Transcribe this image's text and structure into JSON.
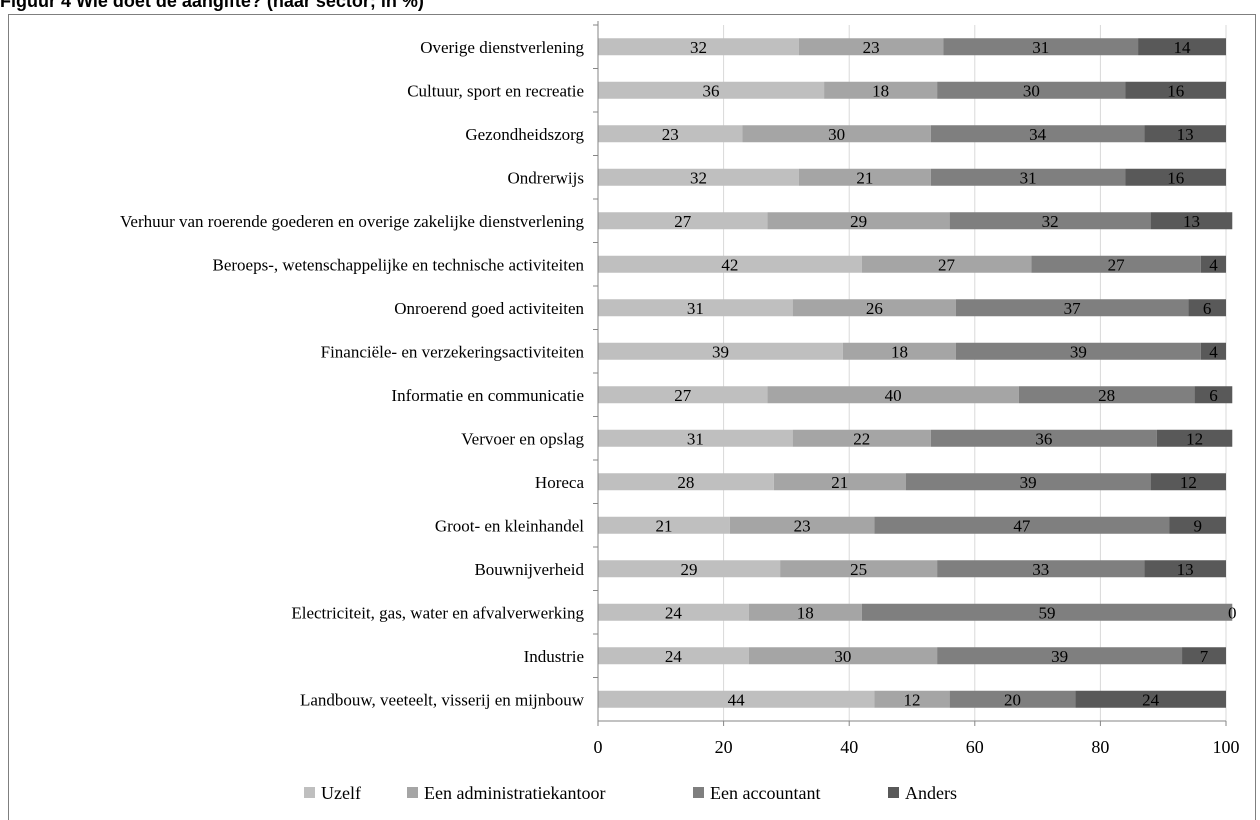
{
  "page": {
    "title": "Figuur 4 Wie doet de aangifte? (naar sector; in %)"
  },
  "chart_data": {
    "type": "bar",
    "orientation": "horizontal",
    "stacked": true,
    "categories": [
      "Overige dienstverlening",
      "Cultuur, sport en recreatie",
      "Gezondheidszorg",
      "Ondrerwijs",
      "Verhuur van roerende goederen en overige zakelijke dienstverlening",
      "Beroeps-, wetenschappelijke en technische activiteiten",
      "Onroerend goed activiteiten",
      "Financiële- en verzekeringsactiviteiten",
      "Informatie en communicatie",
      "Vervoer en opslag",
      "Horeca",
      "Groot- en kleinhandel",
      "Bouwnijverheid",
      "Electriciteit, gas, water en afvalverwerking",
      "Industrie",
      "Landbouw, veeteelt, visserij en mijnbouw"
    ],
    "series": [
      {
        "name": "Uzelf",
        "color": "#bfbfbf",
        "values": [
          32,
          36,
          23,
          32,
          27,
          42,
          31,
          39,
          27,
          31,
          28,
          21,
          29,
          24,
          24,
          44
        ]
      },
      {
        "name": "Een administratiekantoor",
        "color": "#a5a5a5",
        "values": [
          23,
          18,
          30,
          21,
          29,
          27,
          26,
          18,
          40,
          22,
          21,
          23,
          25,
          18,
          30,
          12
        ]
      },
      {
        "name": "Een accountant",
        "color": "#7f7f7f",
        "values": [
          31,
          30,
          34,
          31,
          32,
          27,
          37,
          39,
          28,
          36,
          39,
          47,
          33,
          59,
          39,
          20
        ]
      },
      {
        "name": "Anders",
        "color": "#595959",
        "values": [
          14,
          16,
          13,
          16,
          13,
          4,
          6,
          4,
          6,
          12,
          12,
          9,
          13,
          0,
          7,
          24
        ]
      }
    ],
    "xlim": [
      0,
      100
    ],
    "xticks": [
      0,
      20,
      40,
      60,
      80,
      100
    ],
    "grid": true,
    "legend_position": "bottom"
  }
}
